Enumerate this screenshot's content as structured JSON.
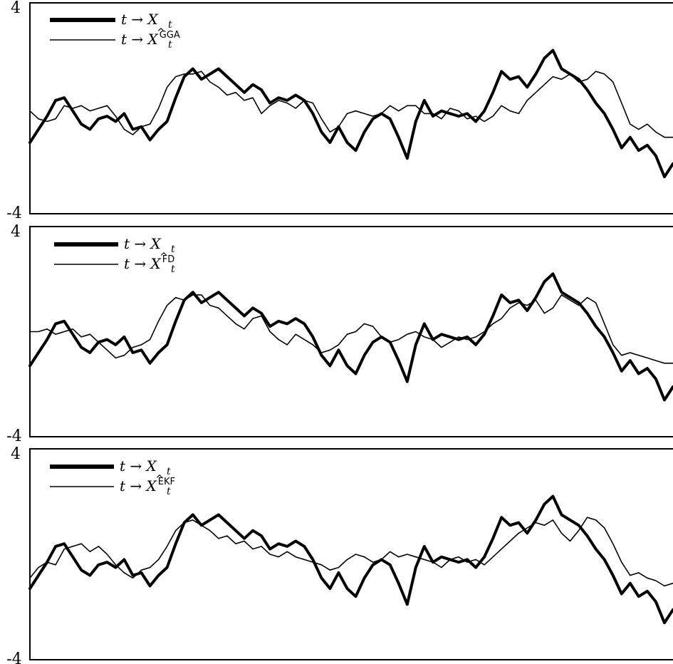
{
  "chart_data": [
    {
      "type": "line",
      "ylim": [
        -4,
        4
      ],
      "ytick_labels": [
        "4",
        "-4"
      ],
      "grid": false,
      "legend_position": "top-left",
      "legend": [
        {
          "var": "X",
          "sub": "t",
          "hat": false,
          "sup": "",
          "width": "thick"
        },
        {
          "var": "X",
          "sub": "t",
          "hat": true,
          "sup": "GGA",
          "width": "thin"
        }
      ],
      "series": [
        {
          "name": "t → X_t",
          "width": "thick",
          "y": [
            -1.3,
            -0.8,
            -0.3,
            0.3,
            0.4,
            -0.1,
            -0.6,
            -0.8,
            -0.4,
            -0.3,
            -0.5,
            -0.2,
            -0.8,
            -0.7,
            -1.2,
            -0.8,
            -0.5,
            0.4,
            1.2,
            1.5,
            1.1,
            1.3,
            1.5,
            1.2,
            0.9,
            0.6,
            0.9,
            0.7,
            0.2,
            0.4,
            0.3,
            0.5,
            0.3,
            -0.2,
            -0.9,
            -1.3,
            -0.7,
            -1.3,
            -1.6,
            -0.9,
            -0.4,
            -0.2,
            -0.4,
            -1.1,
            -1.9,
            -0.5,
            0.3,
            -0.3,
            -0.1,
            -0.2,
            -0.3,
            -0.2,
            -0.5,
            -0.1,
            0.6,
            1.4,
            1.1,
            1.2,
            0.8,
            1.3,
            1.9,
            2.2,
            1.5,
            1.3,
            1.1,
            0.7,
            0.2,
            -0.2,
            -0.8,
            -1.5,
            -1.1,
            -1.6,
            -1.4,
            -1.8,
            -2.6,
            -2.1
          ]
        },
        {
          "name": "t → X̂_t^GGA",
          "width": "thin",
          "y": [
            -0.1,
            -0.4,
            -0.5,
            -0.4,
            0.1,
            0.0,
            0.1,
            -0.1,
            0.0,
            0.1,
            -0.3,
            -0.8,
            -1.0,
            -0.7,
            -0.6,
            0.0,
            0.8,
            1.2,
            1.3,
            1.3,
            1.4,
            1.0,
            0.8,
            0.5,
            0.6,
            0.3,
            0.4,
            -0.2,
            0.1,
            0.3,
            0.2,
            0.0,
            0.3,
            0.2,
            -0.4,
            -0.9,
            -0.7,
            -0.2,
            -0.1,
            -0.2,
            -0.3,
            -0.2,
            0.1,
            -0.1,
            0.1,
            0.1,
            -0.2,
            -0.2,
            -0.4,
            0.0,
            -0.1,
            -0.4,
            -0.3,
            -0.5,
            -0.3,
            0.1,
            -0.1,
            -0.2,
            0.3,
            0.6,
            0.9,
            1.2,
            1.1,
            1.3,
            1.0,
            1.1,
            1.4,
            1.3,
            1.0,
            0.2,
            -0.6,
            -0.8,
            -0.6,
            -0.9,
            -1.1,
            -1.1
          ]
        }
      ]
    },
    {
      "type": "line",
      "ylim": [
        -4,
        4
      ],
      "ytick_labels": [
        "4",
        "-4"
      ],
      "grid": false,
      "legend_position": "top-left",
      "legend": [
        {
          "var": "X",
          "sub": "t",
          "hat": false,
          "sup": "",
          "width": "thick"
        },
        {
          "var": "X",
          "sub": "t",
          "hat": true,
          "sup": "FD",
          "width": "thin"
        }
      ],
      "series": [
        {
          "name": "t → X_t",
          "width": "thick",
          "y": [
            -1.3,
            -0.8,
            -0.3,
            0.3,
            0.4,
            -0.1,
            -0.6,
            -0.8,
            -0.4,
            -0.3,
            -0.5,
            -0.2,
            -0.8,
            -0.7,
            -1.2,
            -0.8,
            -0.5,
            0.4,
            1.2,
            1.5,
            1.1,
            1.3,
            1.5,
            1.2,
            0.9,
            0.6,
            0.9,
            0.7,
            0.2,
            0.4,
            0.3,
            0.5,
            0.3,
            -0.2,
            -0.9,
            -1.3,
            -0.7,
            -1.3,
            -1.6,
            -0.9,
            -0.4,
            -0.2,
            -0.4,
            -1.1,
            -1.9,
            -0.5,
            0.3,
            -0.3,
            -0.1,
            -0.2,
            -0.3,
            -0.2,
            -0.5,
            -0.1,
            0.6,
            1.4,
            1.1,
            1.2,
            0.8,
            1.3,
            1.9,
            2.2,
            1.5,
            1.3,
            1.1,
            0.7,
            0.2,
            -0.2,
            -0.8,
            -1.5,
            -1.1,
            -1.6,
            -1.4,
            -1.8,
            -2.6,
            -2.1
          ]
        },
        {
          "name": "t → X̂_t^FD",
          "width": "thin",
          "y": [
            0.0,
            0.0,
            0.1,
            -0.1,
            0.0,
            0.1,
            -0.2,
            -0.1,
            -0.4,
            -0.7,
            -1.0,
            -0.9,
            -0.6,
            -0.5,
            -0.3,
            0.4,
            1.0,
            1.3,
            1.2,
            1.4,
            1.4,
            1.0,
            0.9,
            0.6,
            0.3,
            0.1,
            0.5,
            0.6,
            0.0,
            -0.3,
            -0.5,
            -0.1,
            -0.3,
            -0.5,
            -0.8,
            -0.7,
            -0.5,
            -0.1,
            0.0,
            0.3,
            0.2,
            -0.2,
            -0.4,
            -0.3,
            -0.1,
            0.0,
            -0.2,
            -0.3,
            -0.6,
            -0.4,
            -0.2,
            -0.3,
            -0.2,
            0.0,
            0.3,
            0.5,
            0.9,
            1.1,
            1.0,
            1.2,
            0.7,
            0.9,
            1.4,
            1.2,
            1.0,
            1.3,
            1.1,
            0.3,
            -0.5,
            -0.9,
            -0.8,
            -0.9,
            -1.0,
            -1.1,
            -1.2,
            -1.2
          ]
        }
      ]
    },
    {
      "type": "line",
      "ylim": [
        -4,
        4
      ],
      "ytick_labels": [
        "4",
        "-4"
      ],
      "grid": false,
      "legend_position": "top-left",
      "legend": [
        {
          "var": "X",
          "sub": "t",
          "hat": false,
          "sup": "",
          "width": "thick"
        },
        {
          "var": "X",
          "sub": "t",
          "hat": true,
          "sup": "EKF",
          "width": "thin"
        }
      ],
      "series": [
        {
          "name": "t → X_t",
          "width": "thick",
          "y": [
            -1.3,
            -0.8,
            -0.3,
            0.3,
            0.4,
            -0.1,
            -0.6,
            -0.8,
            -0.4,
            -0.3,
            -0.5,
            -0.2,
            -0.8,
            -0.7,
            -1.2,
            -0.8,
            -0.5,
            0.4,
            1.2,
            1.5,
            1.1,
            1.3,
            1.5,
            1.2,
            0.9,
            0.6,
            0.9,
            0.7,
            0.2,
            0.4,
            0.3,
            0.5,
            0.3,
            -0.2,
            -0.9,
            -1.3,
            -0.7,
            -1.3,
            -1.6,
            -0.9,
            -0.4,
            -0.2,
            -0.4,
            -1.1,
            -1.9,
            -0.5,
            0.3,
            -0.3,
            -0.1,
            -0.2,
            -0.3,
            -0.2,
            -0.5,
            -0.1,
            0.6,
            1.4,
            1.1,
            1.2,
            0.8,
            1.3,
            1.9,
            2.2,
            1.5,
            1.3,
            1.1,
            0.7,
            0.2,
            -0.2,
            -0.8,
            -1.5,
            -1.1,
            -1.6,
            -1.4,
            -1.8,
            -2.6,
            -2.1
          ]
        },
        {
          "name": "t → X̂_t^EKF",
          "width": "thin",
          "y": [
            -0.9,
            -0.5,
            -0.3,
            -0.4,
            0.2,
            0.3,
            0.4,
            0.1,
            0.3,
            0.0,
            -0.4,
            -0.7,
            -0.9,
            -0.6,
            -0.5,
            -0.2,
            0.3,
            0.9,
            1.2,
            1.3,
            1.1,
            0.9,
            0.6,
            0.7,
            0.4,
            0.5,
            0.2,
            0.3,
            0.0,
            -0.1,
            0.1,
            -0.1,
            -0.2,
            -0.3,
            -0.4,
            -0.6,
            -0.5,
            -0.2,
            0.0,
            -0.1,
            -0.3,
            -0.2,
            0.1,
            -0.1,
            0.0,
            -0.1,
            -0.2,
            -0.3,
            -0.5,
            -0.2,
            -0.1,
            -0.3,
            -0.2,
            -0.4,
            -0.1,
            0.2,
            0.5,
            0.8,
            1.0,
            1.2,
            1.1,
            1.3,
            0.8,
            0.5,
            0.9,
            1.4,
            1.3,
            1.0,
            0.4,
            -0.3,
            -0.8,
            -0.7,
            -0.9,
            -1.0,
            -1.2,
            -1.1
          ]
        }
      ]
    }
  ]
}
